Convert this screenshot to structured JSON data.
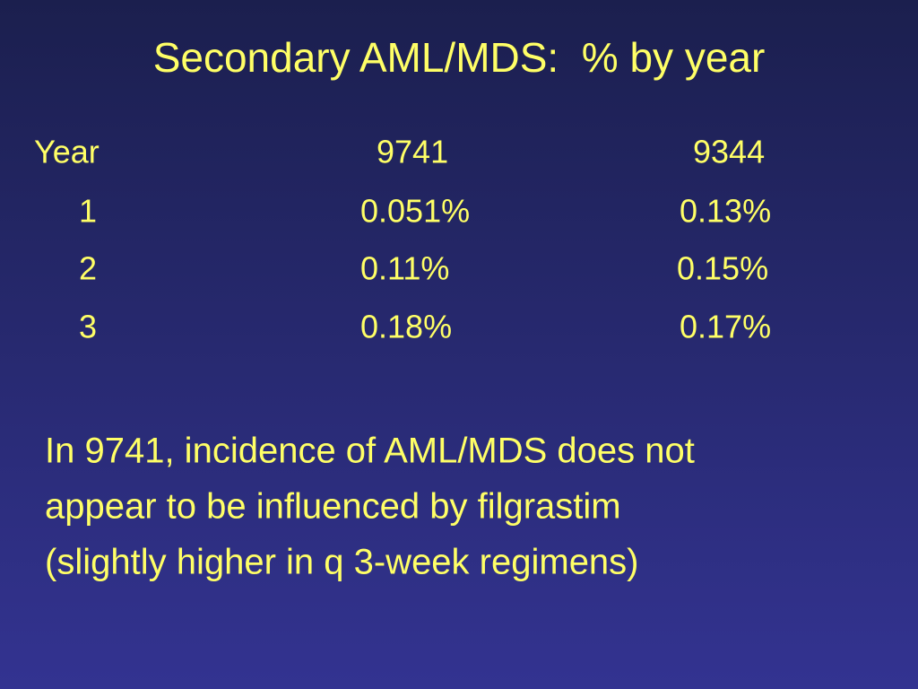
{
  "title": "Secondary AML/MDS:  % by year",
  "table": {
    "header": [
      "Year",
      "9741",
      "9344"
    ],
    "rows": [
      [
        "1",
        "0.051%",
        "0.13%"
      ],
      [
        "2",
        "0.11%",
        "0.15%"
      ],
      [
        "3",
        "0.18%",
        "0.17%"
      ]
    ]
  },
  "note": {
    "lines": [
      "In 9741, incidence of AML/MDS does not",
      "appear to be influenced by filgrastim",
      "(slightly higher in q 3-week regimens)"
    ]
  }
}
